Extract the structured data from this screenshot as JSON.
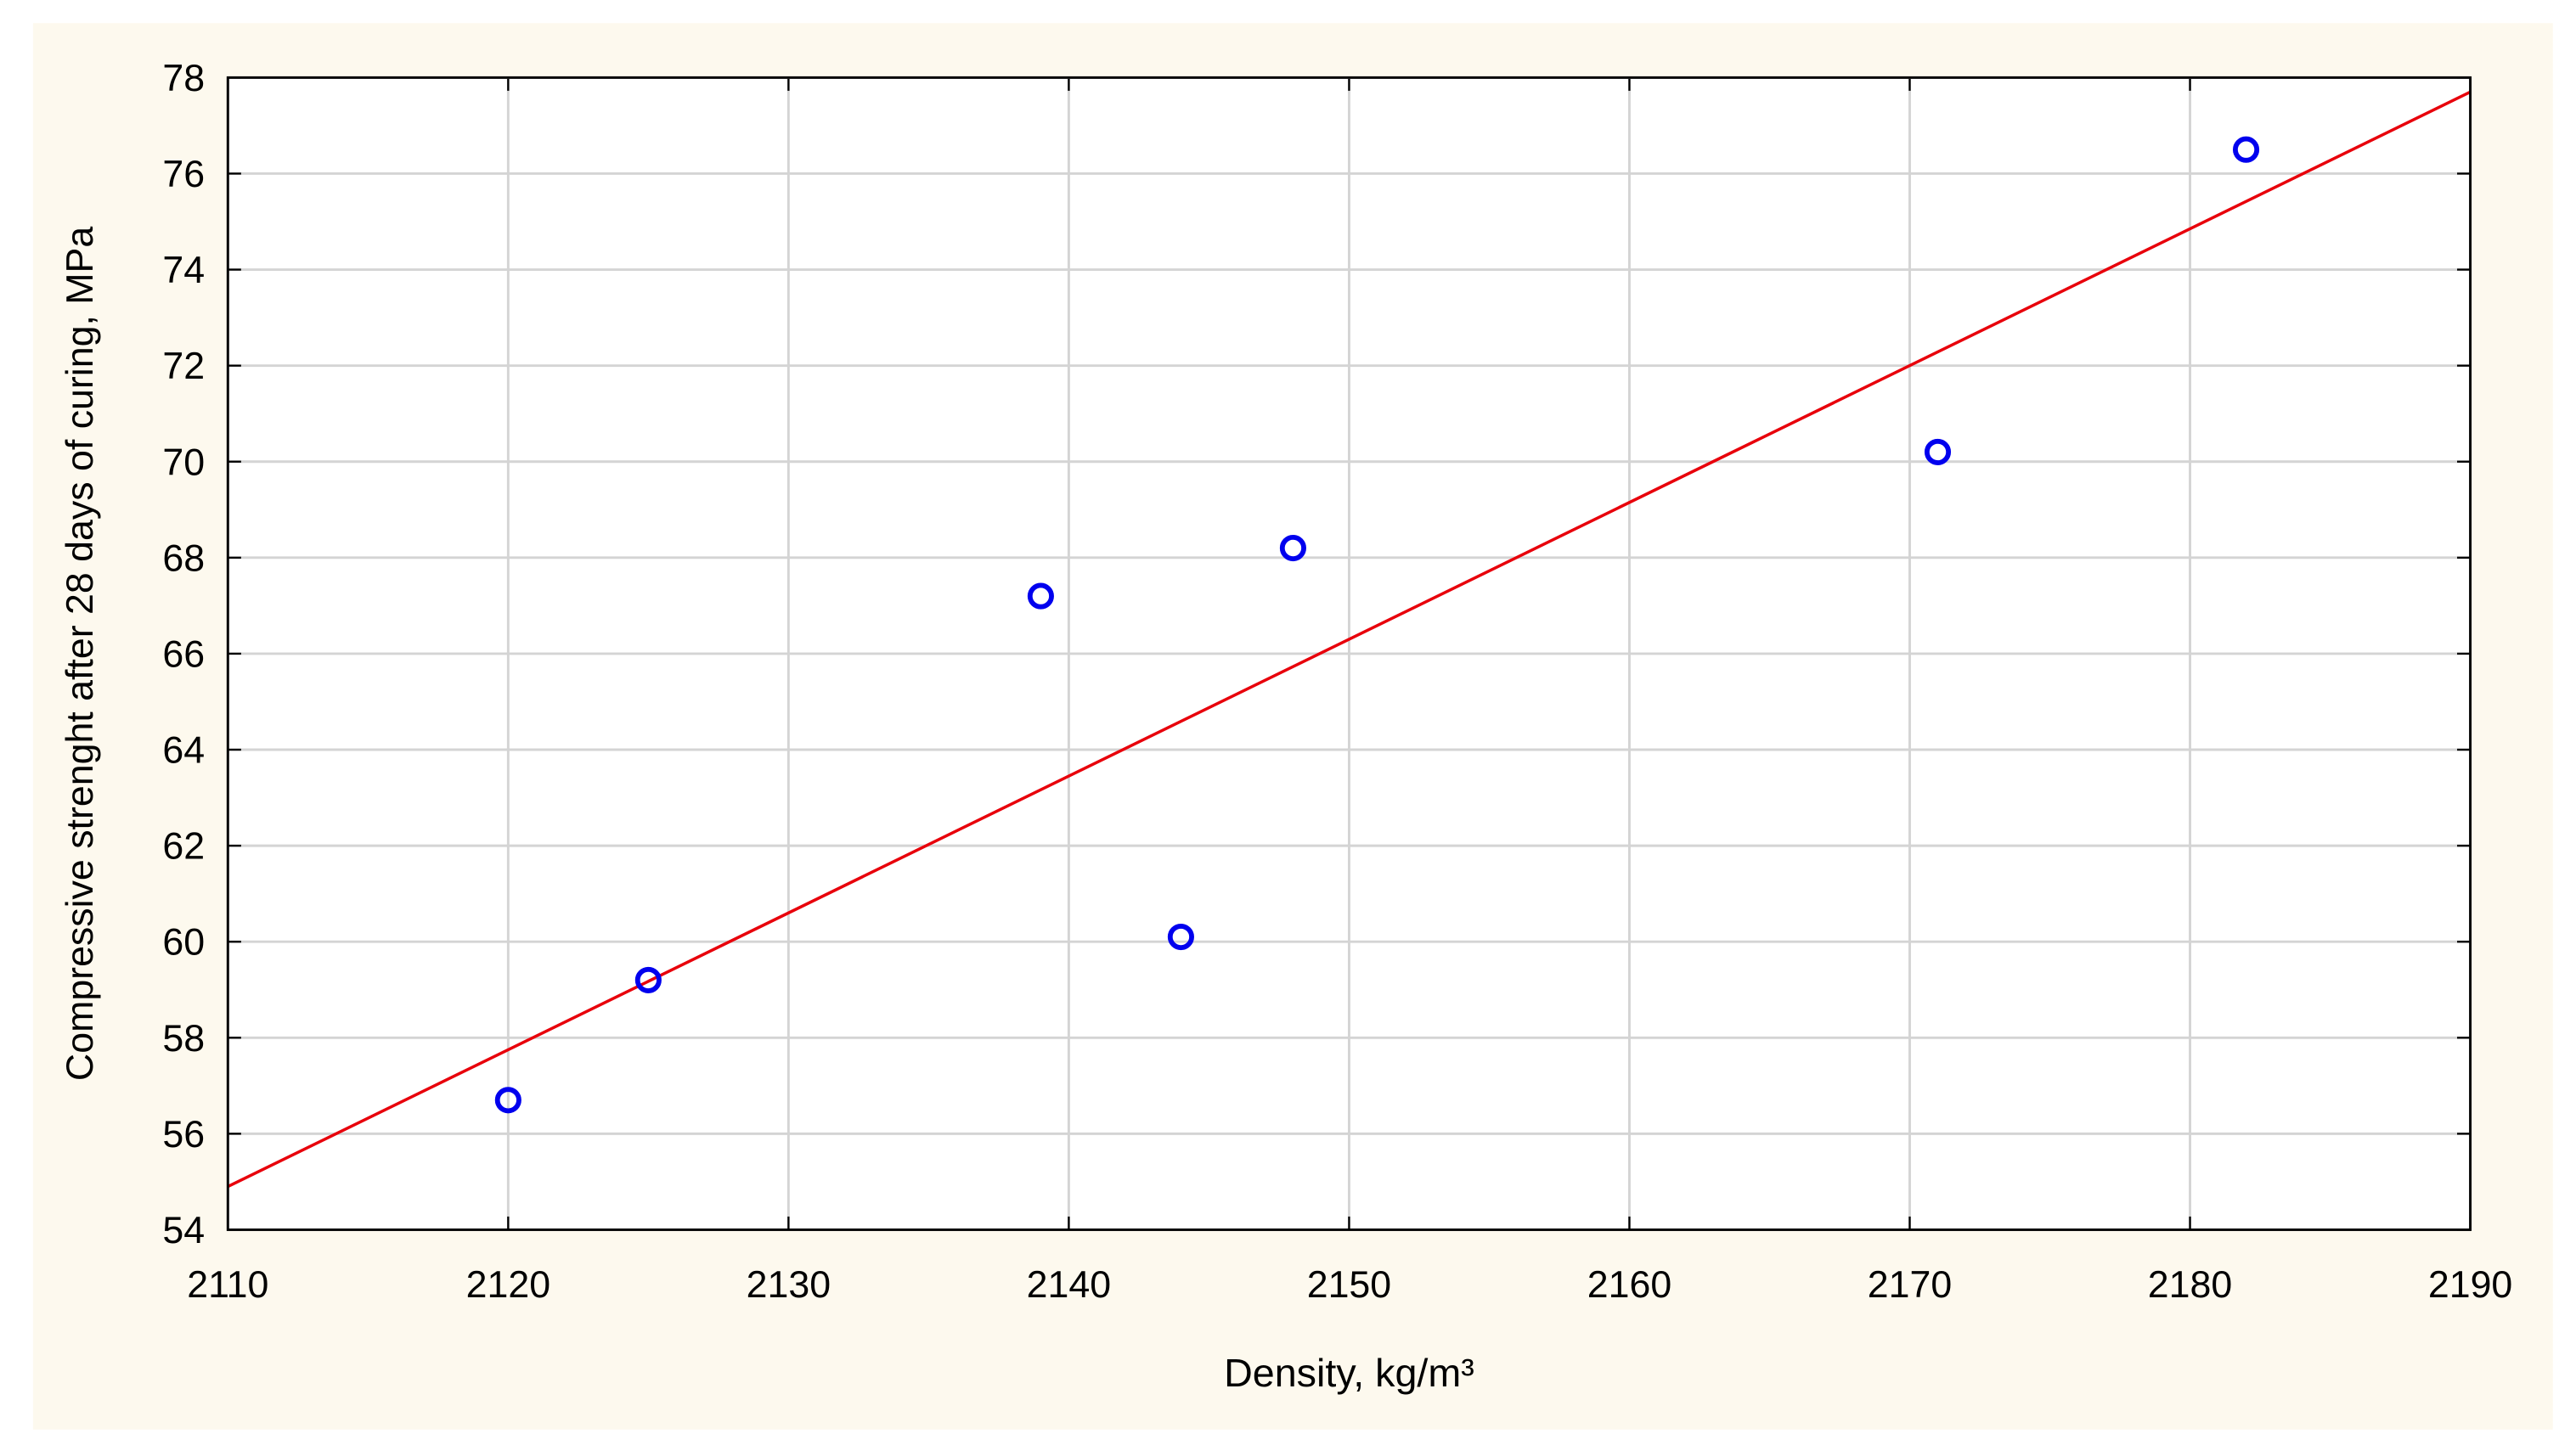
{
  "chart_data": {
    "type": "scatter",
    "x_label": "Density, kg/m³",
    "y_label": "Compressive strenght after 28 days of curing, MPa",
    "x": [
      2120,
      2125,
      2139,
      2144,
      2148,
      2171,
      2182
    ],
    "values": [
      56.7,
      59.2,
      67.2,
      60.1,
      68.2,
      70.2,
      76.5
    ],
    "color": "#0000ee",
    "fit_line": {
      "x": [
        2110,
        2190
      ],
      "values": [
        54.9,
        77.7
      ],
      "color": "#e8000b"
    },
    "xlim": [
      2110,
      2190
    ],
    "xticks": [
      2110,
      2120,
      2130,
      2140,
      2150,
      2160,
      2170,
      2180,
      2190
    ],
    "ylim": [
      54,
      78
    ],
    "yticks": [
      54,
      56,
      58,
      60,
      62,
      64,
      66,
      68,
      70,
      72,
      74,
      76,
      78
    ],
    "grid": true
  }
}
